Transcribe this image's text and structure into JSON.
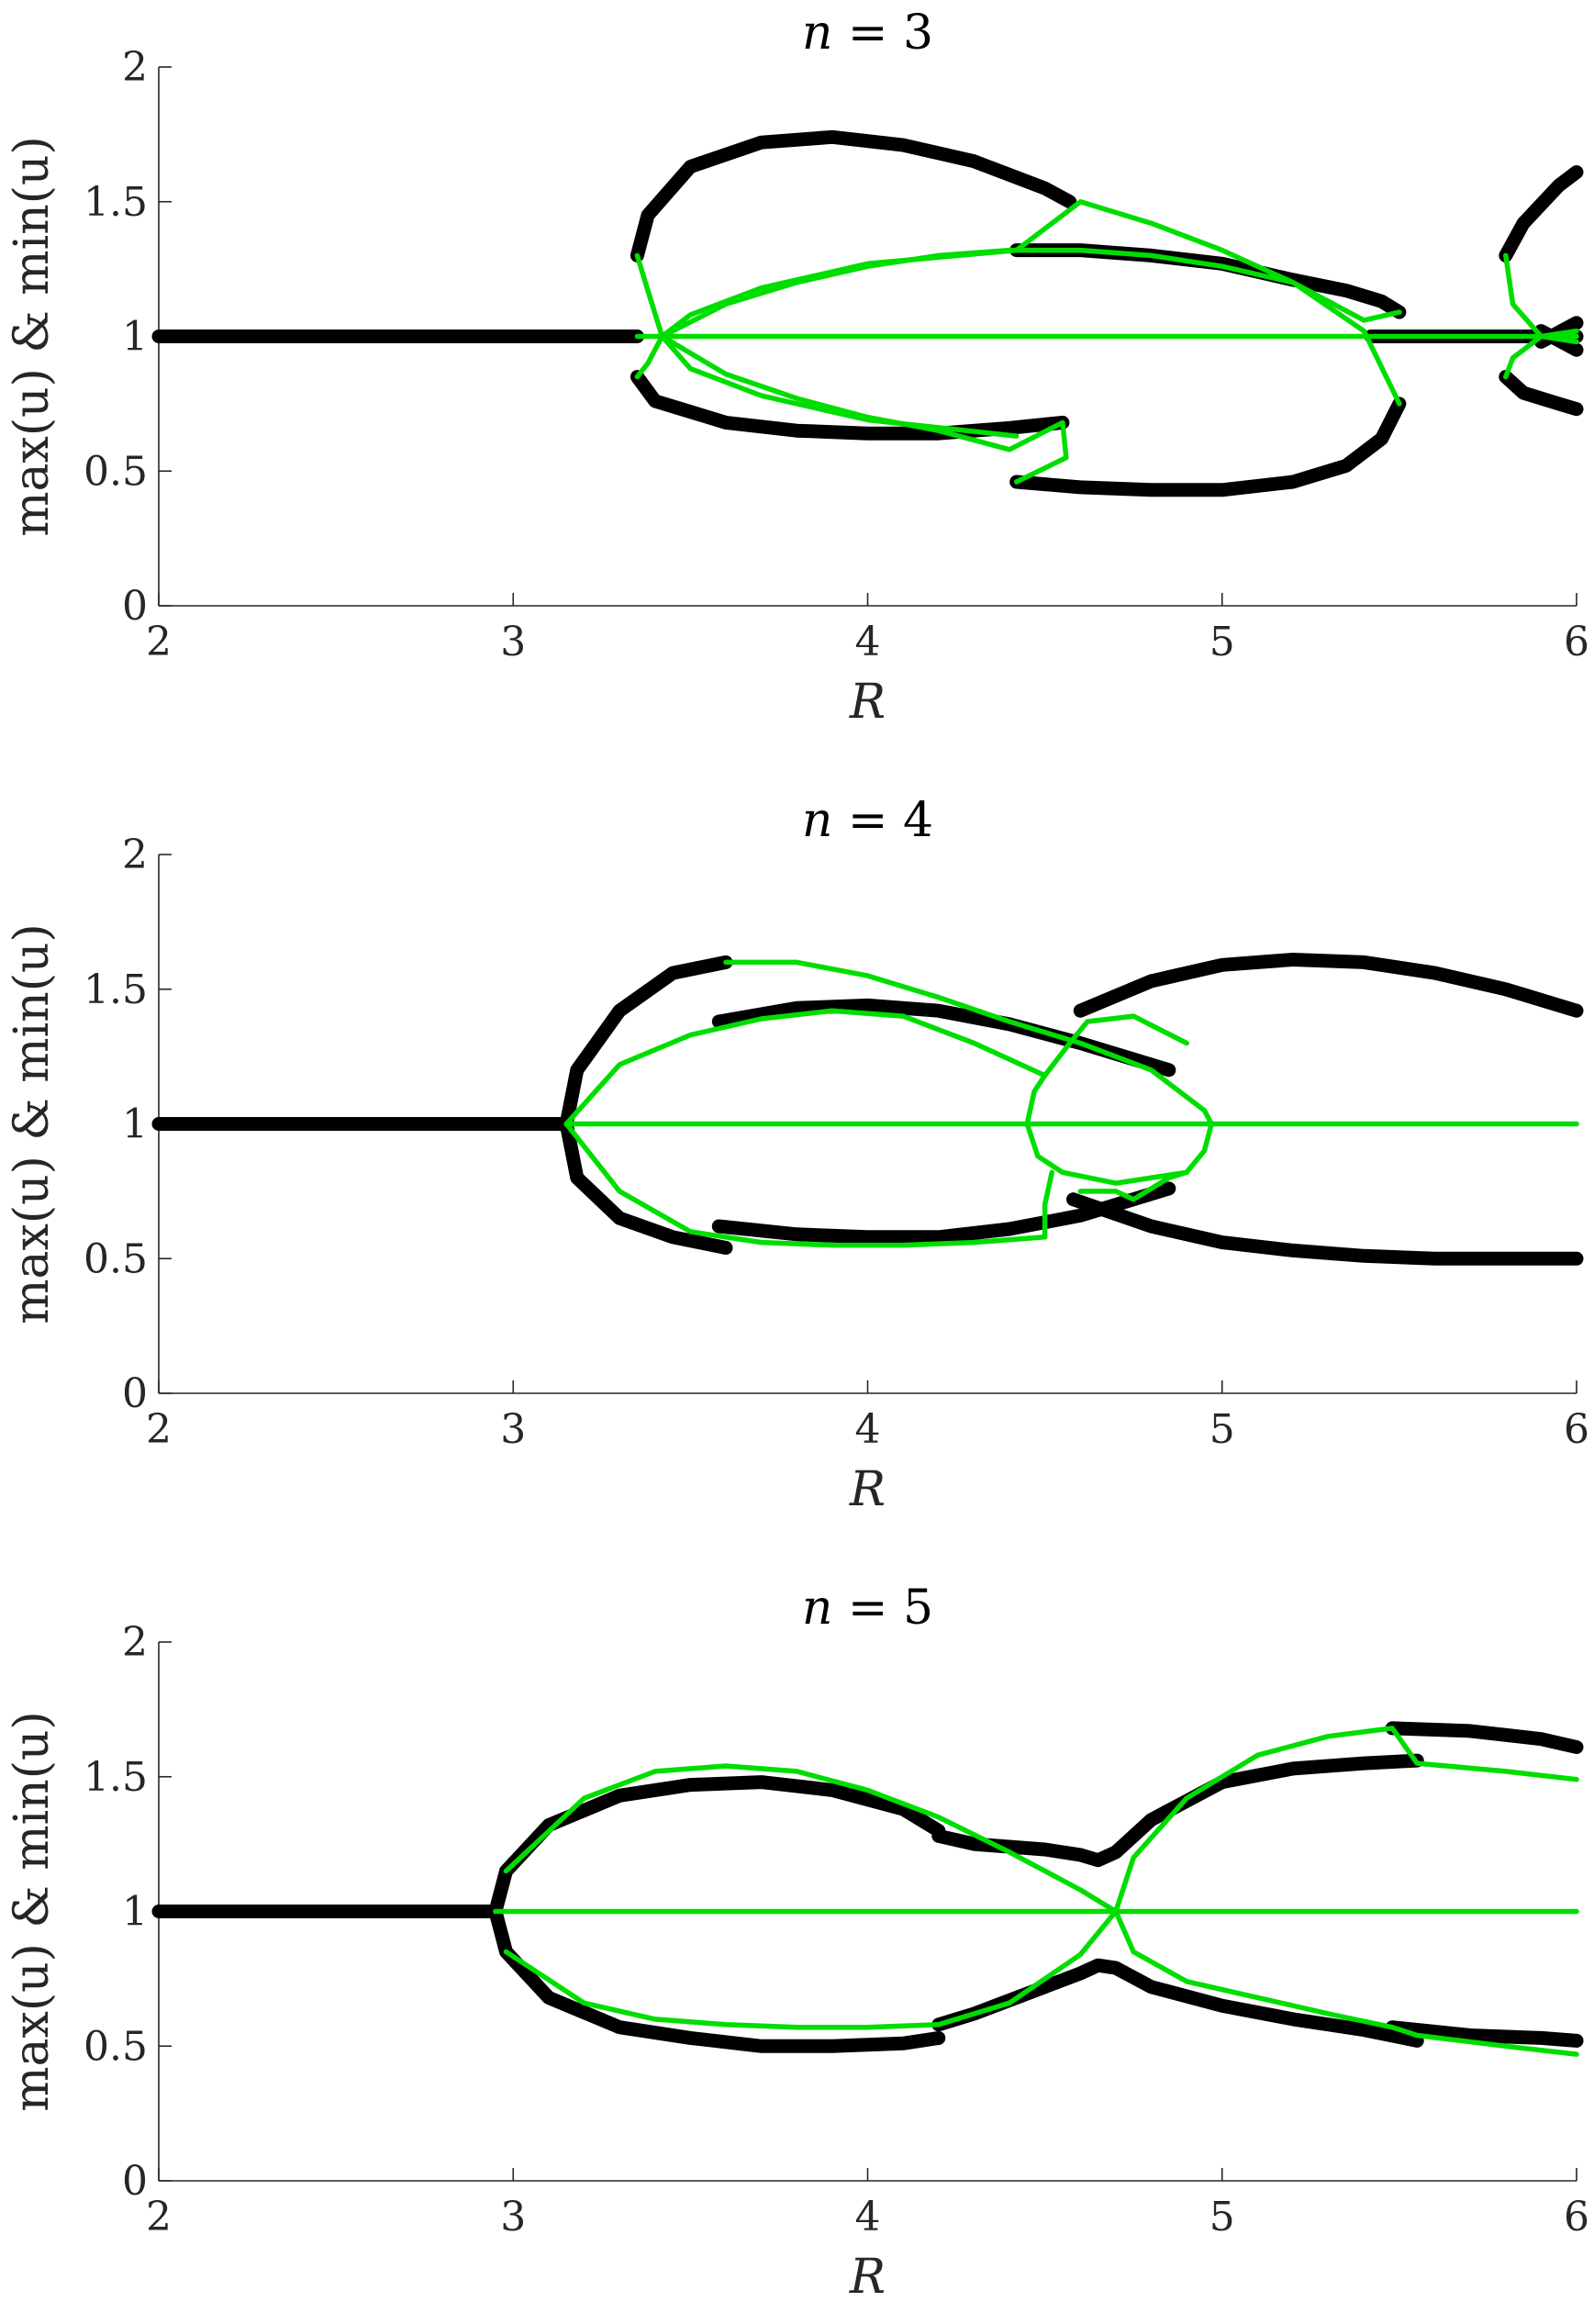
{
  "colors": {
    "stable": "#000000",
    "unstable": "#00dd00",
    "axis": "#262626"
  },
  "chart_data": [
    {
      "type": "line",
      "title": "n = 3",
      "title_var": "n",
      "title_value": "3",
      "xlabel": "R",
      "ylabel": "max(u) & min(u)",
      "xlim": [
        2,
        6
      ],
      "ylim": [
        0,
        2
      ],
      "xticks": [
        "2",
        "3",
        "4",
        "5",
        "6"
      ],
      "yticks": [
        "0",
        "0.5",
        "1",
        "1.5",
        "2"
      ],
      "grid": false,
      "series": [
        {
          "style": "stable",
          "x": [
            2.0,
            3.35
          ],
          "y": [
            1.0,
            1.0
          ]
        },
        {
          "style": "stable",
          "x": [
            5.42,
            6.0
          ],
          "y": [
            1.0,
            1.0
          ]
        },
        {
          "style": "stable",
          "x": [
            3.35,
            3.38,
            3.5,
            3.7,
            3.9,
            4.1,
            4.3,
            4.5,
            4.57
          ],
          "y": [
            1.3,
            1.45,
            1.63,
            1.72,
            1.74,
            1.71,
            1.65,
            1.55,
            1.5
          ]
        },
        {
          "style": "stable",
          "x": [
            3.35,
            3.4,
            3.6,
            3.8,
            4.0,
            4.2,
            4.4,
            4.55
          ],
          "y": [
            0.85,
            0.76,
            0.68,
            0.65,
            0.64,
            0.64,
            0.66,
            0.68
          ]
        },
        {
          "style": "stable",
          "x": [
            4.42,
            4.6,
            4.8,
            5.0,
            5.2,
            5.35,
            5.45,
            5.5
          ],
          "y": [
            1.32,
            1.32,
            1.3,
            1.27,
            1.21,
            1.17,
            1.13,
            1.09
          ]
        },
        {
          "style": "stable",
          "x": [
            4.42,
            4.6,
            4.8,
            5.0,
            5.2,
            5.35,
            5.45,
            5.5
          ],
          "y": [
            0.46,
            0.44,
            0.43,
            0.43,
            0.46,
            0.52,
            0.62,
            0.75
          ]
        },
        {
          "style": "stable",
          "x": [
            5.8,
            5.85,
            5.95,
            6.0
          ],
          "y": [
            1.3,
            1.42,
            1.56,
            1.61
          ]
        },
        {
          "style": "stable",
          "x": [
            5.8,
            5.85,
            5.95,
            6.0
          ],
          "y": [
            0.85,
            0.79,
            0.75,
            0.73
          ]
        },
        {
          "style": "stable",
          "x": [
            5.9,
            6.0
          ],
          "y": [
            0.98,
            1.05
          ]
        },
        {
          "style": "stable",
          "x": [
            5.9,
            6.0
          ],
          "y": [
            1.02,
            0.95
          ]
        },
        {
          "style": "unstable",
          "x": [
            3.35,
            6.0
          ],
          "y": [
            1.0,
            1.0
          ]
        },
        {
          "style": "unstable",
          "x": [
            3.35,
            3.38,
            3.42,
            3.5,
            3.7,
            4.0,
            4.42
          ],
          "y": [
            1.3,
            1.17,
            1.0,
            0.88,
            0.78,
            0.69,
            0.63
          ]
        },
        {
          "style": "unstable",
          "x": [
            3.35,
            3.38,
            3.42,
            3.5,
            3.7,
            4.0,
            4.42
          ],
          "y": [
            0.85,
            0.9,
            1.0,
            1.08,
            1.18,
            1.27,
            1.32
          ]
        },
        {
          "style": "unstable",
          "x": [
            4.42,
            4.6,
            4.8,
            5.0,
            5.2,
            5.4,
            5.5
          ],
          "y": [
            1.32,
            1.5,
            1.42,
            1.32,
            1.2,
            1.02,
            0.75
          ]
        },
        {
          "style": "unstable",
          "x": [
            4.42,
            4.56,
            4.55,
            4.4,
            4.2,
            4.0,
            3.8,
            3.6,
            3.42
          ],
          "y": [
            0.46,
            0.55,
            0.68,
            0.58,
            0.65,
            0.7,
            0.77,
            0.86,
            1.0
          ]
        },
        {
          "style": "unstable",
          "x": [
            3.42,
            3.6,
            3.8,
            4.0,
            4.2,
            4.4,
            4.6,
            4.8,
            5.0,
            5.2,
            5.4,
            5.5
          ],
          "y": [
            1.0,
            1.12,
            1.2,
            1.26,
            1.3,
            1.32,
            1.32,
            1.3,
            1.26,
            1.2,
            1.06,
            1.09
          ]
        },
        {
          "style": "unstable",
          "x": [
            5.8,
            5.82,
            5.9,
            6.0
          ],
          "y": [
            1.3,
            1.12,
            1.0,
            0.98
          ]
        },
        {
          "style": "unstable",
          "x": [
            5.8,
            5.82,
            5.9,
            6.0
          ],
          "y": [
            0.85,
            0.92,
            1.0,
            1.02
          ]
        }
      ]
    },
    {
      "type": "line",
      "title": "n = 4",
      "title_var": "n",
      "title_value": "4",
      "xlabel": "R",
      "ylabel": "max(u) & min(u)",
      "xlim": [
        2,
        6
      ],
      "ylim": [
        0,
        2
      ],
      "xticks": [
        "2",
        "3",
        "4",
        "5",
        "6"
      ],
      "yticks": [
        "0",
        "0.5",
        "1",
        "1.5",
        "2"
      ],
      "grid": false,
      "series": [
        {
          "style": "stable",
          "x": [
            2.0,
            3.15
          ],
          "y": [
            1.0,
            1.0
          ]
        },
        {
          "style": "stable",
          "x": [
            3.15,
            3.18,
            3.3,
            3.45,
            3.6
          ],
          "y": [
            1.0,
            1.2,
            1.42,
            1.56,
            1.6
          ]
        },
        {
          "style": "stable",
          "x": [
            3.15,
            3.18,
            3.3,
            3.45,
            3.6
          ],
          "y": [
            1.0,
            0.8,
            0.65,
            0.58,
            0.54
          ]
        },
        {
          "style": "stable",
          "x": [
            3.58,
            3.8,
            4.0,
            4.2,
            4.4,
            4.6,
            4.85
          ],
          "y": [
            1.38,
            1.43,
            1.44,
            1.42,
            1.37,
            1.3,
            1.2
          ]
        },
        {
          "style": "stable",
          "x": [
            3.58,
            3.8,
            4.0,
            4.2,
            4.4,
            4.6,
            4.85
          ],
          "y": [
            0.62,
            0.59,
            0.58,
            0.58,
            0.61,
            0.66,
            0.76
          ]
        },
        {
          "style": "stable",
          "x": [
            4.6,
            4.8,
            5.0,
            5.2,
            5.4,
            5.6,
            5.8,
            6.0
          ],
          "y": [
            1.42,
            1.53,
            1.59,
            1.61,
            1.6,
            1.56,
            1.5,
            1.42
          ]
        },
        {
          "style": "stable",
          "x": [
            4.58,
            4.8,
            5.0,
            5.2,
            5.4,
            5.6,
            5.8,
            6.0
          ],
          "y": [
            0.72,
            0.62,
            0.56,
            0.53,
            0.51,
            0.5,
            0.5,
            0.5
          ]
        },
        {
          "style": "unstable",
          "x": [
            3.15,
            6.0
          ],
          "y": [
            1.0,
            1.0
          ]
        },
        {
          "style": "unstable",
          "x": [
            3.15,
            3.3,
            3.5,
            3.7,
            3.9,
            4.1,
            4.3,
            4.5
          ],
          "y": [
            1.0,
            1.22,
            1.33,
            1.39,
            1.42,
            1.4,
            1.3,
            1.18
          ]
        },
        {
          "style": "unstable",
          "x": [
            3.15,
            3.3,
            3.5,
            3.7,
            3.9,
            4.1,
            4.3,
            4.5
          ],
          "y": [
            1.0,
            0.75,
            0.6,
            0.56,
            0.55,
            0.55,
            0.56,
            0.58
          ]
        },
        {
          "style": "unstable",
          "x": [
            3.6,
            3.8,
            4.0,
            4.2,
            4.4,
            4.6,
            4.8,
            4.95,
            4.97
          ],
          "y": [
            1.6,
            1.6,
            1.55,
            1.47,
            1.38,
            1.3,
            1.2,
            1.05,
            1.0
          ]
        },
        {
          "style": "unstable",
          "x": [
            4.97,
            4.95,
            4.9,
            4.85,
            4.75,
            4.7,
            4.6
          ],
          "y": [
            1.0,
            0.9,
            0.82,
            0.8,
            0.72,
            0.75,
            0.75
          ]
        },
        {
          "style": "unstable",
          "x": [
            4.5,
            4.47,
            4.45,
            4.48,
            4.55,
            4.7,
            4.9
          ],
          "y": [
            1.18,
            1.12,
            1.0,
            0.88,
            0.82,
            0.78,
            0.82
          ]
        },
        {
          "style": "unstable",
          "x": [
            4.5,
            4.57,
            4.62,
            4.75,
            4.9
          ],
          "y": [
            1.18,
            1.3,
            1.38,
            1.4,
            1.3
          ]
        },
        {
          "style": "unstable",
          "x": [
            4.5,
            4.5,
            4.52
          ],
          "y": [
            0.58,
            0.7,
            0.82
          ]
        }
      ]
    },
    {
      "type": "line",
      "title": "n = 5",
      "title_var": "n",
      "title_value": "5",
      "xlabel": "R",
      "ylabel": "max(u) & min(u)",
      "xlim": [
        2,
        6
      ],
      "ylim": [
        0,
        2
      ],
      "xticks": [
        "2",
        "3",
        "4",
        "5",
        "6"
      ],
      "yticks": [
        "0",
        "0.5",
        "1",
        "1.5",
        "2"
      ],
      "grid": false,
      "series": [
        {
          "style": "stable",
          "x": [
            2.0,
            2.95
          ],
          "y": [
            1.0,
            1.0
          ]
        },
        {
          "style": "stable",
          "x": [
            2.95,
            2.98,
            3.1,
            3.3,
            3.5,
            3.7,
            3.9,
            4.1,
            4.2
          ],
          "y": [
            1.0,
            1.15,
            1.32,
            1.43,
            1.47,
            1.48,
            1.45,
            1.38,
            1.3
          ]
        },
        {
          "style": "stable",
          "x": [
            2.95,
            2.98,
            3.1,
            3.3,
            3.5,
            3.7,
            3.9,
            4.1,
            4.2
          ],
          "y": [
            1.0,
            0.85,
            0.68,
            0.57,
            0.53,
            0.5,
            0.5,
            0.51,
            0.53
          ]
        },
        {
          "style": "stable",
          "x": [
            4.2,
            4.3,
            4.5,
            4.6,
            4.65,
            4.7,
            4.8,
            5.0,
            5.2,
            5.4,
            5.55
          ],
          "y": [
            1.28,
            1.25,
            1.23,
            1.21,
            1.19,
            1.22,
            1.34,
            1.48,
            1.53,
            1.55,
            1.56
          ]
        },
        {
          "style": "stable",
          "x": [
            4.2,
            4.3,
            4.5,
            4.6,
            4.65,
            4.7,
            4.8,
            5.0,
            5.2,
            5.4,
            5.55
          ],
          "y": [
            0.58,
            0.62,
            0.72,
            0.77,
            0.8,
            0.79,
            0.72,
            0.65,
            0.6,
            0.56,
            0.52
          ]
        },
        {
          "style": "stable",
          "x": [
            5.48,
            5.7,
            5.9,
            6.0
          ],
          "y": [
            1.68,
            1.67,
            1.64,
            1.61
          ]
        },
        {
          "style": "stable",
          "x": [
            5.48,
            5.7,
            5.9,
            6.0
          ],
          "y": [
            0.57,
            0.54,
            0.53,
            0.52
          ]
        },
        {
          "style": "unstable",
          "x": [
            2.95,
            6.0
          ],
          "y": [
            1.0,
            1.0
          ]
        },
        {
          "style": "unstable",
          "x": [
            2.98,
            3.2,
            3.4,
            3.6,
            3.8,
            4.0,
            4.2,
            4.4,
            4.6,
            4.7
          ],
          "y": [
            1.15,
            1.42,
            1.52,
            1.54,
            1.52,
            1.45,
            1.35,
            1.22,
            1.08,
            1.0
          ]
        },
        {
          "style": "unstable",
          "x": [
            2.98,
            3.2,
            3.4,
            3.6,
            3.8,
            4.0,
            4.2,
            4.4,
            4.6,
            4.7
          ],
          "y": [
            0.85,
            0.66,
            0.6,
            0.58,
            0.57,
            0.57,
            0.58,
            0.66,
            0.84,
            1.0
          ]
        },
        {
          "style": "unstable",
          "x": [
            4.7,
            4.75,
            4.9,
            5.1,
            5.3,
            5.48,
            5.55,
            5.8,
            6.0
          ],
          "y": [
            1.0,
            1.2,
            1.42,
            1.58,
            1.65,
            1.68,
            1.55,
            1.52,
            1.49
          ]
        },
        {
          "style": "unstable",
          "x": [
            4.7,
            4.75,
            4.9,
            5.1,
            5.3,
            5.48,
            5.55,
            5.8,
            6.0
          ],
          "y": [
            1.0,
            0.85,
            0.74,
            0.68,
            0.62,
            0.57,
            0.54,
            0.5,
            0.47
          ]
        }
      ]
    }
  ]
}
